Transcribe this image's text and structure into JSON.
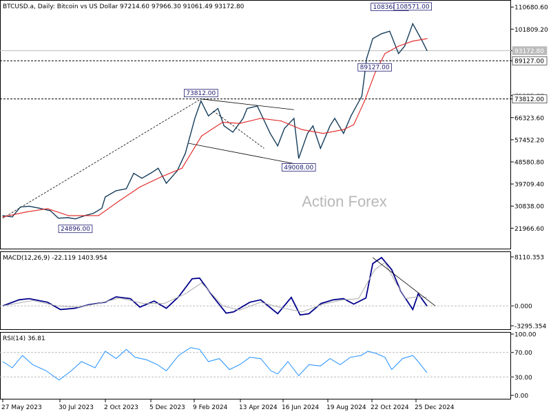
{
  "chart_data": [
    {
      "type": "line",
      "title": "BTCUSD.a, Daily:  Bitcoin vs US Dollar  97214.60 97966.30 91061.49 93172.80",
      "watermark": "Action Forex",
      "x_ticks": [
        "27 May 2023",
        "30 Jul 2023",
        "2 Oct 2023",
        "5 Dec 2023",
        "9 Feb 2024",
        "13 Apr 2024",
        "16 Jun 2024",
        "19 Aug 2024",
        "22 Oct 2024",
        "25 Dec 2024"
      ],
      "y_ticks": [
        "110680.60",
        "101809.20",
        "93172.80",
        "89127.00",
        "75195.00",
        "73812.00",
        "66323.60",
        "57452.20",
        "48580.80",
        "39709.40",
        "30838.00",
        "21966.60"
      ],
      "ylim": [
        13500,
        113500
      ],
      "series": [
        {
          "role": "price",
          "color": "#143c5a",
          "x": [
            "2023-05-27",
            "2023-06-10",
            "2023-06-22",
            "2023-07-05",
            "2023-07-20",
            "2023-08-05",
            "2023-08-17",
            "2023-08-31",
            "2023-09-11",
            "2023-09-25",
            "2023-10-08",
            "2023-10-20",
            "2023-10-25",
            "2023-11-10",
            "2023-11-25",
            "2023-12-06",
            "2023-12-18",
            "2024-01-01",
            "2024-01-11",
            "2024-01-23",
            "2024-02-08",
            "2024-02-20",
            "2024-03-05",
            "2024-03-14",
            "2024-03-25",
            "2024-04-08",
            "2024-04-17",
            "2024-04-30",
            "2024-05-15",
            "2024-05-21",
            "2024-06-05",
            "2024-06-24",
            "2024-07-05",
            "2024-07-15",
            "2024-07-29",
            "2024-08-05",
            "2024-08-18",
            "2024-08-26",
            "2024-09-06",
            "2024-09-20",
            "2024-09-27",
            "2024-10-10",
            "2024-10-21",
            "2024-11-06",
            "2024-11-13",
            "2024-11-22",
            "2024-12-05",
            "2024-12-17",
            "2024-12-30",
            "2025-01-08",
            "2025-01-20",
            "2025-02-03",
            "2025-02-10"
          ],
          "y": [
            27000,
            26500,
            30500,
            30800,
            30000,
            29000,
            26000,
            26200,
            25700,
            27000,
            28000,
            30000,
            34500,
            37000,
            37800,
            44000,
            42000,
            44200,
            46000,
            40000,
            45000,
            52000,
            66000,
            73000,
            67000,
            70000,
            63000,
            60500,
            66000,
            70000,
            71000,
            60000,
            55000,
            62000,
            66000,
            50000,
            60000,
            63000,
            54000,
            63000,
            66000,
            60000,
            67000,
            75000,
            90000,
            98000,
            100000,
            101000,
            92000,
            95000,
            104000,
            97000,
            93172.8
          ]
        },
        {
          "role": "moving-average",
          "color": "#e02020",
          "x": [
            "2023-05-27",
            "2023-07-01",
            "2023-08-01",
            "2023-09-01",
            "2023-10-15",
            "2023-11-15",
            "2023-12-15",
            "2024-01-15",
            "2024-02-15",
            "2024-03-15",
            "2024-04-15",
            "2024-05-10",
            "2024-06-10",
            "2024-07-10",
            "2024-08-10",
            "2024-09-10",
            "2024-10-10",
            "2024-10-25",
            "2024-11-10",
            "2024-11-25",
            "2024-12-10",
            "2024-12-30",
            "2025-01-20",
            "2025-02-10"
          ],
          "y": [
            26500,
            28500,
            29800,
            27000,
            27000,
            33000,
            38500,
            42500,
            46000,
            59000,
            64500,
            64000,
            66000,
            65000,
            61500,
            60000,
            61500,
            63500,
            73000,
            84000,
            92000,
            95000,
            97000,
            98000
          ]
        }
      ],
      "callouts": [
        {
          "label": "108368.00",
          "x": "2024-12-17",
          "y": 108368
        },
        {
          "label": "108571.00",
          "x": "2025-01-20",
          "y": 108571
        },
        {
          "label": "89127.00",
          "x": "2024-11-25",
          "y": 89127
        },
        {
          "label": "73812.00",
          "x": "2024-03-14",
          "y": 73812
        },
        {
          "label": "49008.00",
          "x": "2024-08-05",
          "y": 49008
        },
        {
          "label": "24896.00",
          "x": "2023-09-11",
          "y": 24896
        }
      ],
      "horizontal_levels": [
        {
          "value": 93172.8,
          "label": "93172.80",
          "style": "solid",
          "color": "#bbbbbb",
          "label_bg": "#bbbbbb",
          "label_color": "#ffffff"
        },
        {
          "value": 89127,
          "label": "89127.00",
          "style": "dashed",
          "color": "#000000",
          "label_bg": "#ffffff",
          "label_color": "#000000"
        },
        {
          "value": 73812,
          "label": "73812.00",
          "style": "dashed",
          "color": "#000000",
          "label_bg": "#ffffff",
          "label_color": "#000000"
        }
      ],
      "trendlines": [
        {
          "style": "dashed",
          "from": {
            "x": "2023-05-27",
            "y": 26000
          },
          "to": {
            "x": "2024-03-14",
            "y": 73812
          }
        },
        {
          "style": "solid",
          "from": {
            "x": "2024-03-14",
            "y": 73812
          },
          "to": {
            "x": "2024-07-29",
            "y": 69500
          }
        },
        {
          "style": "solid",
          "from": {
            "x": "2024-02-25",
            "y": 56000
          },
          "to": {
            "x": "2024-08-05",
            "y": 47500
          }
        },
        {
          "style": "dashed",
          "from": {
            "x": "2024-04-01",
            "y": 69000
          },
          "to": {
            "x": "2024-06-15",
            "y": 54000
          }
        }
      ]
    },
    {
      "type": "line",
      "title": "MACD(12,26,9) -22.119 1403.954",
      "y_ticks": [
        "8110.353",
        "0.000",
        "-3295.354"
      ],
      "ylim": [
        -3295.354,
        8110.353
      ],
      "series": [
        {
          "role": "macd-main",
          "color": "#00008b",
          "x": [
            "2023-05-27",
            "2023-06-20",
            "2023-07-05",
            "2023-08-01",
            "2023-08-20",
            "2023-09-10",
            "2023-10-01",
            "2023-10-25",
            "2023-11-10",
            "2023-12-01",
            "2023-12-15",
            "2024-01-05",
            "2024-01-23",
            "2024-02-10",
            "2024-03-01",
            "2024-03-12",
            "2024-04-01",
            "2024-04-20",
            "2024-05-01",
            "2024-05-25",
            "2024-06-10",
            "2024-07-05",
            "2024-07-25",
            "2024-08-07",
            "2024-08-20",
            "2024-09-07",
            "2024-09-25",
            "2024-10-10",
            "2024-10-25",
            "2024-11-12",
            "2024-11-22",
            "2024-12-05",
            "2024-12-20",
            "2025-01-02",
            "2025-01-20",
            "2025-01-28",
            "2025-02-10"
          ],
          "y": [
            0,
            1000,
            1200,
            600,
            -600,
            -400,
            200,
            600,
            1500,
            1200,
            -200,
            800,
            -400,
            1500,
            4500,
            4600,
            1500,
            -1200,
            -1000,
            600,
            1000,
            -1300,
            1400,
            -1500,
            -1300,
            400,
            1000,
            1200,
            300,
            1300,
            7000,
            8000,
            6000,
            2500,
            -600,
            2000,
            -22.1
          ]
        },
        {
          "role": "macd-signal",
          "color": "#aaaaaa",
          "x": [
            "2023-05-27",
            "2023-07-10",
            "2023-08-15",
            "2023-09-15",
            "2023-10-15",
            "2023-11-15",
            "2023-12-20",
            "2024-01-20",
            "2024-02-20",
            "2024-03-15",
            "2024-04-15",
            "2024-05-10",
            "2024-06-10",
            "2024-07-10",
            "2024-08-10",
            "2024-09-10",
            "2024-10-10",
            "2024-11-01",
            "2024-11-25",
            "2024-12-10",
            "2024-12-25",
            "2025-01-10",
            "2025-01-25",
            "2025-02-10"
          ],
          "y": [
            0,
            900,
            0,
            -200,
            400,
            1300,
            400,
            400,
            2000,
            3800,
            0,
            -700,
            600,
            -300,
            -1000,
            300,
            1000,
            1200,
            6000,
            7200,
            4000,
            1200,
            1500,
            1404
          ]
        }
      ],
      "trendlines": [
        {
          "style": "solid",
          "from": {
            "x": "2024-11-22",
            "y": 8000
          },
          "to": {
            "x": "2025-02-22",
            "y": 0
          }
        }
      ]
    },
    {
      "type": "line",
      "title": "RSI(14) 36.81",
      "y_ticks": [
        "100.00",
        "70.00",
        "30.00",
        "0.00"
      ],
      "ylim": [
        0,
        100
      ],
      "levels": [
        70,
        30
      ],
      "series": [
        {
          "role": "rsi",
          "color": "#1e90ff",
          "x": [
            "2023-05-27",
            "2023-06-10",
            "2023-06-25",
            "2023-07-10",
            "2023-07-30",
            "2023-08-18",
            "2023-09-05",
            "2023-09-20",
            "2023-10-10",
            "2023-10-25",
            "2023-11-10",
            "2023-11-25",
            "2023-12-08",
            "2023-12-25",
            "2024-01-10",
            "2024-01-23",
            "2024-02-10",
            "2024-02-28",
            "2024-03-12",
            "2024-03-25",
            "2024-04-10",
            "2024-04-25",
            "2024-05-10",
            "2024-05-25",
            "2024-06-10",
            "2024-06-25",
            "2024-07-05",
            "2024-07-20",
            "2024-08-05",
            "2024-08-20",
            "2024-09-06",
            "2024-09-20",
            "2024-10-05",
            "2024-10-20",
            "2024-11-05",
            "2024-11-15",
            "2024-11-28",
            "2024-12-10",
            "2024-12-20",
            "2025-01-05",
            "2025-01-20",
            "2025-01-28",
            "2025-02-10"
          ],
          "y": [
            55,
            45,
            65,
            50,
            40,
            25,
            40,
            55,
            45,
            72,
            60,
            75,
            62,
            58,
            50,
            40,
            65,
            78,
            75,
            55,
            60,
            42,
            50,
            62,
            60,
            40,
            35,
            55,
            32,
            50,
            48,
            60,
            50,
            62,
            65,
            72,
            68,
            62,
            42,
            60,
            65,
            55,
            36.81
          ]
        }
      ]
    }
  ]
}
